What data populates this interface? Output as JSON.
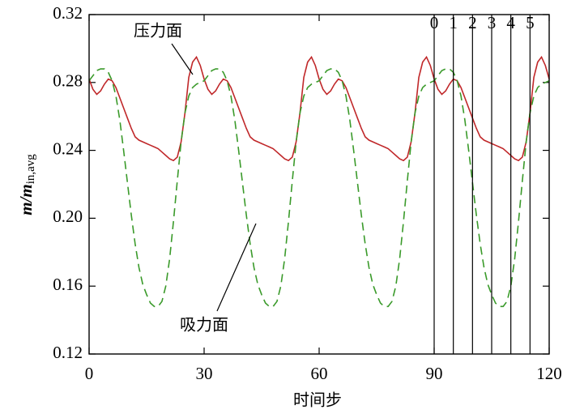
{
  "chart_data": {
    "type": "line",
    "xlabel": "时间步",
    "ylabel": "m/m",
    "ylabel_sub": "in,avg",
    "x": [
      0,
      1,
      2,
      3,
      4,
      5,
      6,
      7,
      8,
      9,
      10,
      11,
      12,
      13,
      14,
      15,
      16,
      17,
      18,
      19,
      20,
      21,
      22,
      23,
      24,
      25,
      26,
      27,
      28,
      29,
      30,
      31,
      32,
      33,
      34,
      35,
      36,
      37,
      38,
      39,
      40,
      41,
      42,
      43,
      44,
      45,
      46,
      47,
      48,
      49,
      50,
      51,
      52,
      53,
      54,
      55,
      56,
      57,
      58,
      59,
      60,
      61,
      62,
      63,
      64,
      65,
      66,
      67,
      68,
      69,
      70,
      71,
      72,
      73,
      74,
      75,
      76,
      77,
      78,
      79,
      80,
      81,
      82,
      83,
      84,
      85,
      86,
      87,
      88,
      89,
      90,
      91,
      92,
      93,
      94,
      95,
      96,
      97,
      98,
      99,
      100,
      101,
      102,
      103,
      104,
      105,
      106,
      107,
      108,
      109,
      110,
      111,
      112,
      113,
      114,
      115,
      116,
      117,
      118,
      119,
      120
    ],
    "series": [
      {
        "name": "压力面",
        "color": "#c0282a",
        "dash": false,
        "values": [
          0.282,
          0.276,
          0.273,
          0.275,
          0.279,
          0.282,
          0.281,
          0.277,
          0.271,
          0.265,
          0.259,
          0.253,
          0.248,
          0.246,
          0.245,
          0.244,
          0.243,
          0.242,
          0.241,
          0.239,
          0.237,
          0.235,
          0.234,
          0.236,
          0.245,
          0.262,
          0.283,
          0.292,
          0.295,
          0.29,
          0.282,
          0.276,
          0.273,
          0.275,
          0.279,
          0.282,
          0.281,
          0.277,
          0.271,
          0.265,
          0.259,
          0.253,
          0.248,
          0.246,
          0.245,
          0.244,
          0.243,
          0.242,
          0.241,
          0.239,
          0.237,
          0.235,
          0.234,
          0.236,
          0.245,
          0.262,
          0.283,
          0.292,
          0.295,
          0.29,
          0.282,
          0.276,
          0.273,
          0.275,
          0.279,
          0.282,
          0.281,
          0.277,
          0.271,
          0.265,
          0.259,
          0.253,
          0.248,
          0.246,
          0.245,
          0.244,
          0.243,
          0.242,
          0.241,
          0.239,
          0.237,
          0.235,
          0.234,
          0.236,
          0.245,
          0.262,
          0.283,
          0.292,
          0.295,
          0.29,
          0.282,
          0.276,
          0.273,
          0.275,
          0.279,
          0.282,
          0.281,
          0.277,
          0.271,
          0.265,
          0.259,
          0.253,
          0.248,
          0.246,
          0.245,
          0.244,
          0.243,
          0.242,
          0.241,
          0.239,
          0.237,
          0.235,
          0.234,
          0.236,
          0.245,
          0.262,
          0.283,
          0.292,
          0.295,
          0.29,
          0.282
        ]
      },
      {
        "name": "吸力面",
        "color": "#3a9a2a",
        "dash": true,
        "values": [
          0.281,
          0.284,
          0.287,
          0.288,
          0.288,
          0.286,
          0.281,
          0.272,
          0.258,
          0.24,
          0.221,
          0.202,
          0.185,
          0.171,
          0.161,
          0.155,
          0.15,
          0.148,
          0.148,
          0.151,
          0.16,
          0.176,
          0.198,
          0.222,
          0.245,
          0.262,
          0.272,
          0.277,
          0.279,
          0.28,
          0.281,
          0.284,
          0.287,
          0.288,
          0.288,
          0.286,
          0.281,
          0.272,
          0.258,
          0.24,
          0.221,
          0.202,
          0.185,
          0.171,
          0.161,
          0.155,
          0.15,
          0.148,
          0.148,
          0.151,
          0.16,
          0.176,
          0.198,
          0.222,
          0.245,
          0.262,
          0.272,
          0.277,
          0.279,
          0.28,
          0.281,
          0.284,
          0.287,
          0.288,
          0.288,
          0.286,
          0.281,
          0.272,
          0.258,
          0.24,
          0.221,
          0.202,
          0.185,
          0.171,
          0.161,
          0.155,
          0.15,
          0.148,
          0.148,
          0.151,
          0.16,
          0.176,
          0.198,
          0.222,
          0.245,
          0.262,
          0.272,
          0.277,
          0.279,
          0.28,
          0.281,
          0.284,
          0.287,
          0.288,
          0.288,
          0.286,
          0.281,
          0.272,
          0.258,
          0.24,
          0.221,
          0.202,
          0.185,
          0.171,
          0.161,
          0.155,
          0.15,
          0.148,
          0.148,
          0.151,
          0.16,
          0.176,
          0.198,
          0.222,
          0.245,
          0.262,
          0.272,
          0.277,
          0.279,
          0.28,
          0.281
        ]
      }
    ],
    "xlim": [
      0,
      120
    ],
    "ylim": [
      0.12,
      0.32
    ],
    "xticks": [
      0,
      30,
      60,
      90,
      120
    ],
    "yticks": [
      0.12,
      0.16,
      {
        "value": 0.2,
        "label": "0.20"
      },
      0.24,
      0.28,
      0.32
    ],
    "vlines": [
      {
        "value": 90,
        "label": "0"
      },
      {
        "value": 95,
        "label": "1"
      },
      {
        "value": 100,
        "label": "2"
      },
      {
        "value": 105,
        "label": "3"
      },
      {
        "value": 110,
        "label": "4"
      },
      {
        "value": 115,
        "label": "5"
      }
    ]
  }
}
